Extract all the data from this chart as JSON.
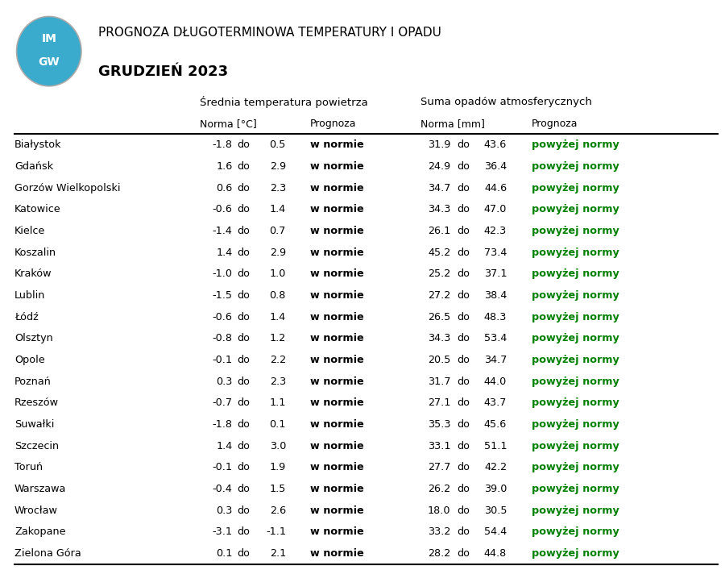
{
  "title_line1": "PROGNOZA DŁUGOTERMINOWA TEMPERATURY I OPADU",
  "title_line2": "GRUDZIEŃ 2023",
  "header1": "Średnia temperatura powietrza",
  "header2": "Suma opadów atmosferycznych",
  "subheader_norma_temp": "Norma [°C]",
  "subheader_prognoza_temp": "Prognoza",
  "subheader_norma_precip": "Norma [mm]",
  "subheader_prognoza_precip": "Prognoza",
  "cities": [
    "Białystok",
    "Gdańsk",
    "Gorzów Wielkopolski",
    "Katowice",
    "Kielce",
    "Koszalin",
    "Kraków",
    "Lublin",
    "Łódź",
    "Olsztyn",
    "Opole",
    "Poznań",
    "Rzeszów",
    "Suwałki",
    "Szczecin",
    "Toruń",
    "Warszawa",
    "Wrocław",
    "Zakopane",
    "Zielona Góra"
  ],
  "temp_norma_low": [
    -1.8,
    1.6,
    0.6,
    -0.6,
    -1.4,
    1.4,
    -1.0,
    -1.5,
    -0.6,
    -0.8,
    -0.1,
    0.3,
    -0.7,
    -1.8,
    1.4,
    -0.1,
    -0.4,
    0.3,
    -3.1,
    0.1
  ],
  "temp_norma_high": [
    0.5,
    2.9,
    2.3,
    1.4,
    0.7,
    2.9,
    1.0,
    0.8,
    1.4,
    1.2,
    2.2,
    2.3,
    1.1,
    0.1,
    3.0,
    1.9,
    1.5,
    2.6,
    -1.1,
    2.1
  ],
  "temp_prognoza": [
    "w normie",
    "w normie",
    "w normie",
    "w normie",
    "w normie",
    "w normie",
    "w normie",
    "w normie",
    "w normie",
    "w normie",
    "w normie",
    "w normie",
    "w normie",
    "w normie",
    "w normie",
    "w normie",
    "w normie",
    "w normie",
    "w normie",
    "w normie"
  ],
  "precip_norma_low": [
    31.9,
    24.9,
    34.7,
    34.3,
    26.1,
    45.2,
    25.2,
    27.2,
    26.5,
    34.3,
    20.5,
    31.7,
    27.1,
    35.3,
    33.1,
    27.7,
    26.2,
    18.0,
    33.2,
    28.2
  ],
  "precip_norma_high": [
    43.6,
    36.4,
    44.6,
    47.0,
    42.3,
    73.4,
    37.1,
    38.4,
    48.3,
    53.4,
    34.7,
    44.0,
    43.7,
    45.6,
    51.1,
    42.2,
    39.0,
    30.5,
    54.4,
    44.8
  ],
  "precip_prognoza": [
    "powyżej normy",
    "powyżej normy",
    "powyżej normy",
    "powyżej normy",
    "powyżej normy",
    "powyżej normy",
    "powyżej normy",
    "powyżej normy",
    "powyżej normy",
    "powyżej normy",
    "powyżej normy",
    "powyżej normy",
    "powyżej normy",
    "powyżej normy",
    "powyżej normy",
    "powyżej normy",
    "powyżej normy",
    "powyżej normy",
    "powyżej normy",
    "powyżej normy"
  ],
  "temp_prognoza_color": "#000000",
  "precip_prognoza_color": "#008000",
  "bg_color": "#ffffff",
  "text_color": "#000000",
  "line_color": "#000000",
  "logo_color_top": "#3aabcc",
  "logo_color_bottom": "#3aabcc"
}
